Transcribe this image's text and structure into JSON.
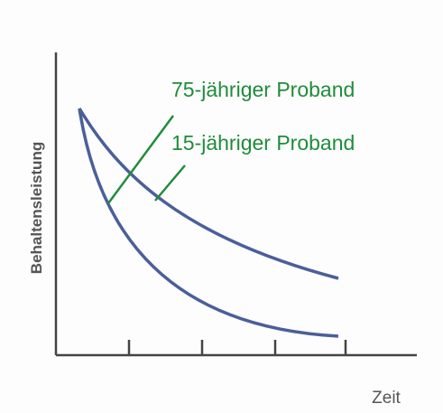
{
  "y_axis_label": "Behaltensleistung",
  "x_axis_label": "Zeit",
  "annotations": [
    "75-jähriger Proband",
    "15-jähriger Proband"
  ]
}
